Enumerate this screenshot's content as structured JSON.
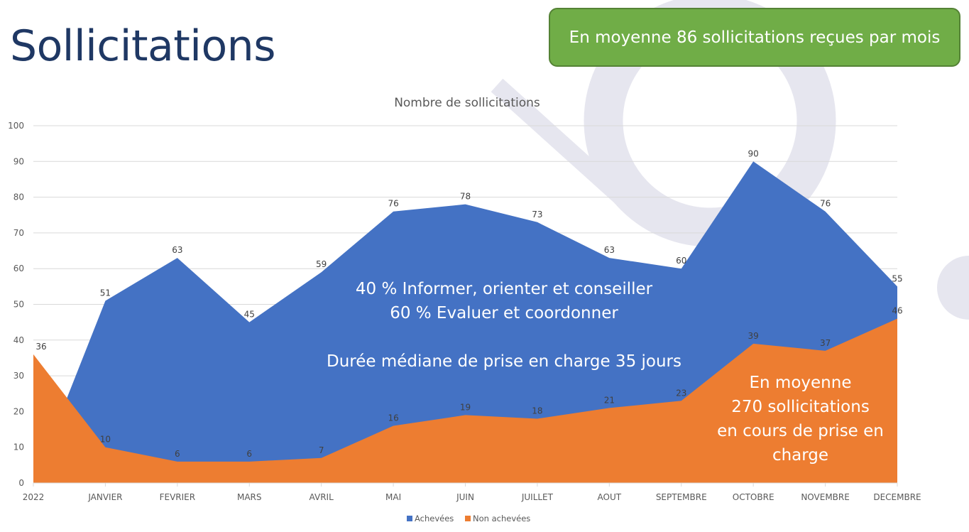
{
  "page_title": "Sollicitations",
  "banner": "En moyenne 86 sollicitations reçues par mois",
  "annotations": {
    "line1": "40 % Informer, orienter et conseiller",
    "line2": "60 % Evaluer et coordonner",
    "line3": "Durée médiane de prise en charge 35 jours",
    "orange_box": [
      "En moyenne",
      "270 sollicitations",
      "en cours de prise en",
      "charge"
    ]
  },
  "colors": {
    "achevees": "#4472c4",
    "non_achevees": "#ed7d31",
    "banner": "#70ad47",
    "title": "#1f3864"
  },
  "chart_data": {
    "type": "area",
    "title": "Nombre de sollicitations",
    "xlabel": "",
    "ylabel": "",
    "ylim": [
      0,
      100
    ],
    "yticks": [
      0,
      10,
      20,
      30,
      40,
      50,
      60,
      70,
      80,
      90,
      100
    ],
    "grid": true,
    "legend": "bottom",
    "categories": [
      "2022",
      "JANVIER",
      "FEVRIER",
      "MARS",
      "AVRIL",
      "MAI",
      "JUIN",
      "JUILLET",
      "AOUT",
      "SEPTEMBRE",
      "OCTOBRE",
      "NOVEMBRE",
      "DECEMBRE"
    ],
    "series": [
      {
        "name": "Achevées",
        "values": [
          0,
          51,
          63,
          45,
          59,
          76,
          78,
          73,
          63,
          60,
          90,
          76,
          55
        ]
      },
      {
        "name": "Non achevées",
        "values": [
          36,
          10,
          6,
          6,
          7,
          16,
          19,
          18,
          21,
          23,
          39,
          37,
          46
        ]
      }
    ]
  }
}
